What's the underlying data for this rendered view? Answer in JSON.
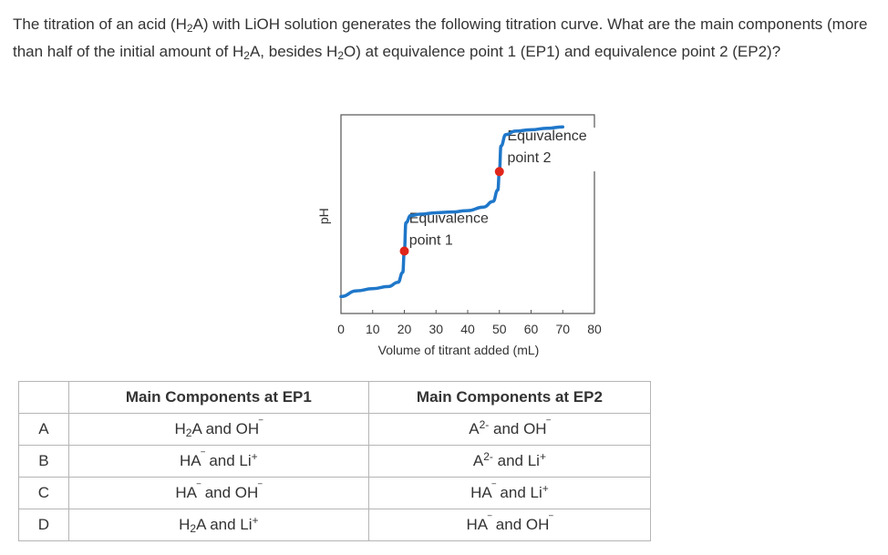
{
  "question": {
    "parts": [
      {
        "t": "The titration of an acid (H"
      },
      {
        "t": "2",
        "sub": true
      },
      {
        "t": "A) with LiOH solution generates the following titration curve. What are the main components (more than half of the initial amount of H"
      },
      {
        "t": "2",
        "sub": true
      },
      {
        "t": "A, besides H"
      },
      {
        "t": "2",
        "sub": true
      },
      {
        "t": "O) at equivalence point 1 (EP1) and equivalence point 2 (EP2)?"
      }
    ]
  },
  "chart_data": {
    "type": "line",
    "title": "",
    "xlabel": "Volume of titrant added (mL)",
    "ylabel": "pH",
    "x_ticks": [
      0,
      10,
      20,
      30,
      40,
      50,
      60,
      70,
      80
    ],
    "xlim": [
      0,
      80
    ],
    "ylim": [
      0,
      14
    ],
    "y_ticks": [],
    "grid": false,
    "colors": {
      "curve": "#1f77c9",
      "point": "#e0251b",
      "axis": "#555555"
    },
    "series": [
      {
        "x": [
          0,
          5,
          10,
          15,
          18,
          19.5,
          20,
          20.5,
          22,
          25,
          30,
          35,
          40,
          45,
          48,
          49.5,
          50,
          50.5,
          52,
          55,
          60,
          65,
          70
        ],
        "y": [
          1.2,
          1.6,
          1.75,
          1.9,
          2.2,
          2.9,
          4.4,
          6.4,
          6.9,
          7.0,
          7.1,
          7.15,
          7.25,
          7.5,
          7.9,
          8.7,
          10.0,
          11.8,
          12.6,
          12.85,
          12.95,
          13.05,
          13.15
        ]
      }
    ],
    "points": [
      {
        "x": 20,
        "y": 4.4
      },
      {
        "x": 50,
        "y": 10.0
      }
    ],
    "annotations": [
      {
        "lines": [
          "Equivalence",
          "point 1"
        ],
        "x": 21.5,
        "y": 6.4
      },
      {
        "lines": [
          "Equivalence",
          "point 2"
        ],
        "x": 52.5,
        "y": 12.2
      }
    ]
  },
  "table": {
    "headers": [
      "",
      "Main Components at EP1",
      "Main Components at EP2"
    ],
    "rows": [
      {
        "letter": "A",
        "ep1": [
          {
            "t": "H"
          },
          {
            "t": "2",
            "sub": true
          },
          {
            "t": "A and OH"
          },
          {
            "t": "‾",
            "sup": true
          }
        ],
        "ep2": [
          {
            "t": "A"
          },
          {
            "t": "2-",
            "sup": true
          },
          {
            "t": " and OH"
          },
          {
            "t": "‾",
            "sup": true
          }
        ]
      },
      {
        "letter": "B",
        "ep1": [
          {
            "t": "HA"
          },
          {
            "t": "‾",
            "sup": true
          },
          {
            "t": " and Li"
          },
          {
            "t": "+",
            "sup": true
          }
        ],
        "ep2": [
          {
            "t": "A"
          },
          {
            "t": "2-",
            "sup": true
          },
          {
            "t": " and Li"
          },
          {
            "t": "+",
            "sup": true
          }
        ]
      },
      {
        "letter": "C",
        "ep1": [
          {
            "t": "HA"
          },
          {
            "t": "‾",
            "sup": true
          },
          {
            "t": " and OH"
          },
          {
            "t": "‾",
            "sup": true
          }
        ],
        "ep2": [
          {
            "t": "HA"
          },
          {
            "t": "‾",
            "sup": true
          },
          {
            "t": " and Li"
          },
          {
            "t": "+",
            "sup": true
          }
        ]
      },
      {
        "letter": "D",
        "ep1": [
          {
            "t": "H"
          },
          {
            "t": "2",
            "sub": true
          },
          {
            "t": "A and Li"
          },
          {
            "t": "+",
            "sup": true
          }
        ],
        "ep2": [
          {
            "t": "HA"
          },
          {
            "t": "‾",
            "sup": true
          },
          {
            "t": " and OH"
          },
          {
            "t": "‾",
            "sup": true
          }
        ]
      }
    ]
  }
}
